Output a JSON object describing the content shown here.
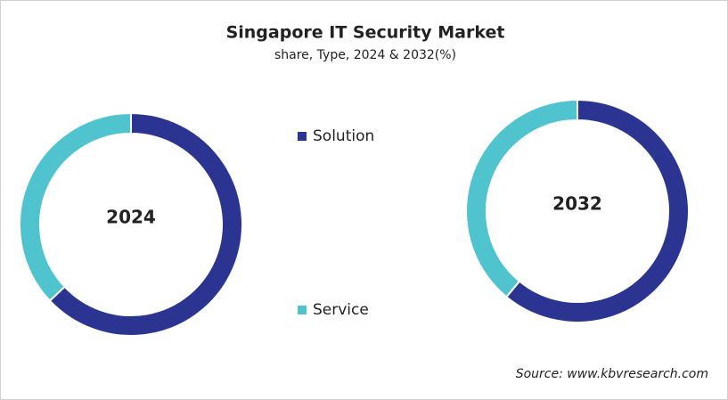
{
  "chart_data": {
    "type": "doughnut",
    "title": "Singapore IT Security Market",
    "subtitle": "share, Type, 2024 & 2032(%)",
    "categories": [
      "Solution",
      "Service"
    ],
    "colors": [
      "#2b3490",
      "#4fc4cf"
    ],
    "series": [
      {
        "name": "2024",
        "values": [
          63,
          37
        ]
      },
      {
        "name": "2032",
        "values": [
          61,
          39
        ]
      }
    ],
    "source": "Source: www.kbvresearch.com"
  }
}
